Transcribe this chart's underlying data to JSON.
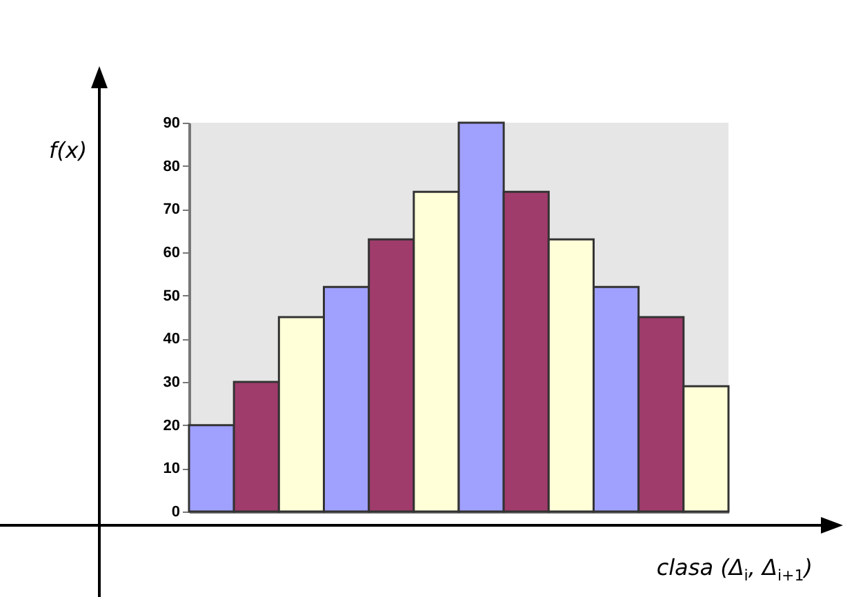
{
  "chart_data": {
    "type": "bar",
    "ylabel": "f(x)",
    "xlabel": "clasa (Δ$_{i}$, Δ$_{i+1}$)",
    "categories": [
      null,
      null,
      null,
      null,
      null,
      null,
      null,
      null,
      null,
      null,
      null,
      null
    ],
    "values": [
      20,
      30,
      45,
      52,
      63,
      74,
      90,
      74,
      63,
      52,
      45,
      29
    ],
    "colors": [
      "#a0a0ff",
      "#a03c6c",
      "#ffffd8",
      "#a0a0ff",
      "#a03c6c",
      "#ffffd8",
      "#a0a0ff",
      "#a03c6c",
      "#ffffd8",
      "#a0a0ff",
      "#a03c6c",
      "#ffffd8"
    ],
    "ylim": [
      0,
      90
    ],
    "yticks": [
      0,
      10,
      20,
      30,
      40,
      50,
      60,
      70,
      80,
      90
    ],
    "grid": false
  }
}
